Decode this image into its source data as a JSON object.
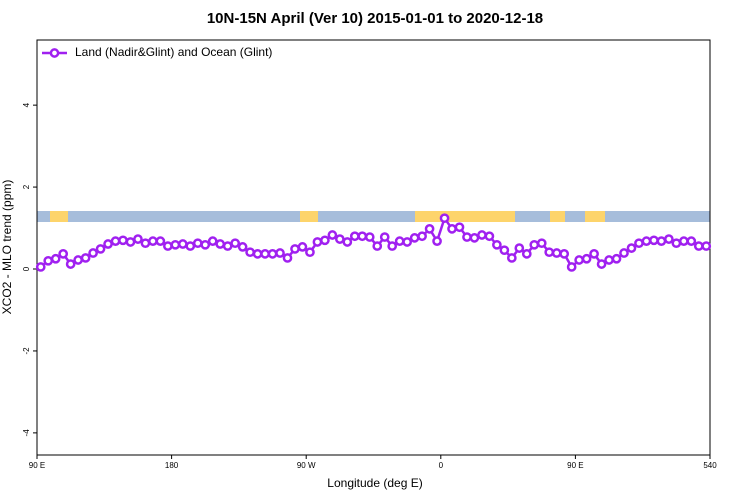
{
  "chart_data": {
    "type": "line",
    "title": "10N-15N April (Ver 10)   2015-01-01 to 2020-12-18",
    "x_label": "Longitude (deg E)",
    "y_label": "XCO2 - MLO trend (ppm)",
    "xlim": [
      90,
      540
    ],
    "xticks": [
      {
        "value": 90,
        "label": "90 E"
      },
      180,
      {
        "value": 270,
        "label": "90 W"
      },
      {
        "value": 360,
        "label": "0"
      },
      {
        "value": 450,
        "label": "90 E"
      },
      540
    ],
    "ylim": [
      -4.54,
      5.59
    ],
    "yticks": [
      -4,
      -2,
      0,
      2,
      4
    ],
    "legend": "top-left",
    "x": [
      92.5,
      97.5,
      102.5,
      107.5,
      112.5,
      117.5,
      122.5,
      127.5,
      132.5,
      137.5,
      142.5,
      147.5,
      152.5,
      157.5,
      162.5,
      167.5,
      172.5,
      177.5,
      182.5,
      187.5,
      192.5,
      197.5,
      202.5,
      207.5,
      212.5,
      217.5,
      222.5,
      227.5,
      232.5,
      237.5,
      242.5,
      247.5,
      252.5,
      257.5,
      262.5,
      267.5,
      272.5,
      277.5,
      282.5,
      287.5,
      292.5,
      297.5,
      302.5,
      307.5,
      312.5,
      317.5,
      322.5,
      327.5,
      332.5,
      337.5,
      342.5,
      347.5,
      352.5,
      357.5,
      362.5,
      367.5,
      372.5,
      377.5,
      382.5,
      387.5,
      392.5,
      397.5,
      402.5,
      407.5,
      412.5,
      417.5,
      422.5,
      427.5,
      432.5,
      437.5,
      442.5,
      447.5,
      452.5,
      457.5,
      462.5,
      467.5,
      472.5,
      477.5,
      482.5,
      487.5,
      492.5,
      497.5,
      502.5,
      507.5,
      512.5,
      517.5,
      522.5,
      527.5,
      532.5,
      537.5
    ],
    "series": [
      {
        "name": "Land (Nadir&Glint) and Ocean (Glint)",
        "color": "#a020f0",
        "values": [
          0.05,
          0.2,
          0.25,
          0.37,
          0.12,
          0.22,
          0.27,
          0.39,
          0.49,
          0.61,
          0.68,
          0.7,
          0.66,
          0.73,
          0.63,
          0.68,
          0.68,
          0.56,
          0.59,
          0.61,
          0.56,
          0.63,
          0.59,
          0.68,
          0.61,
          0.56,
          0.63,
          0.54,
          0.41,
          0.37,
          0.37,
          0.37,
          0.39,
          0.27,
          0.49,
          0.54,
          0.41,
          0.66,
          0.7,
          0.83,
          0.73,
          0.66,
          0.8,
          0.8,
          0.78,
          0.56,
          0.78,
          0.56,
          0.68,
          0.66,
          0.76,
          0.8,
          0.98,
          0.68,
          1.24,
          0.98,
          1.02,
          0.78,
          0.76,
          0.83,
          0.8,
          0.59,
          0.46,
          0.27,
          0.51,
          0.37,
          0.59,
          0.63,
          0.41,
          0.39,
          0.37,
          0.05,
          0.22,
          0.25,
          0.37,
          0.12,
          0.22,
          0.25,
          0.39,
          0.51,
          0.63,
          0.68,
          0.7,
          0.68,
          0.73,
          0.63,
          0.68,
          0.68,
          0.56,
          0.56
        ]
      }
    ]
  }
}
